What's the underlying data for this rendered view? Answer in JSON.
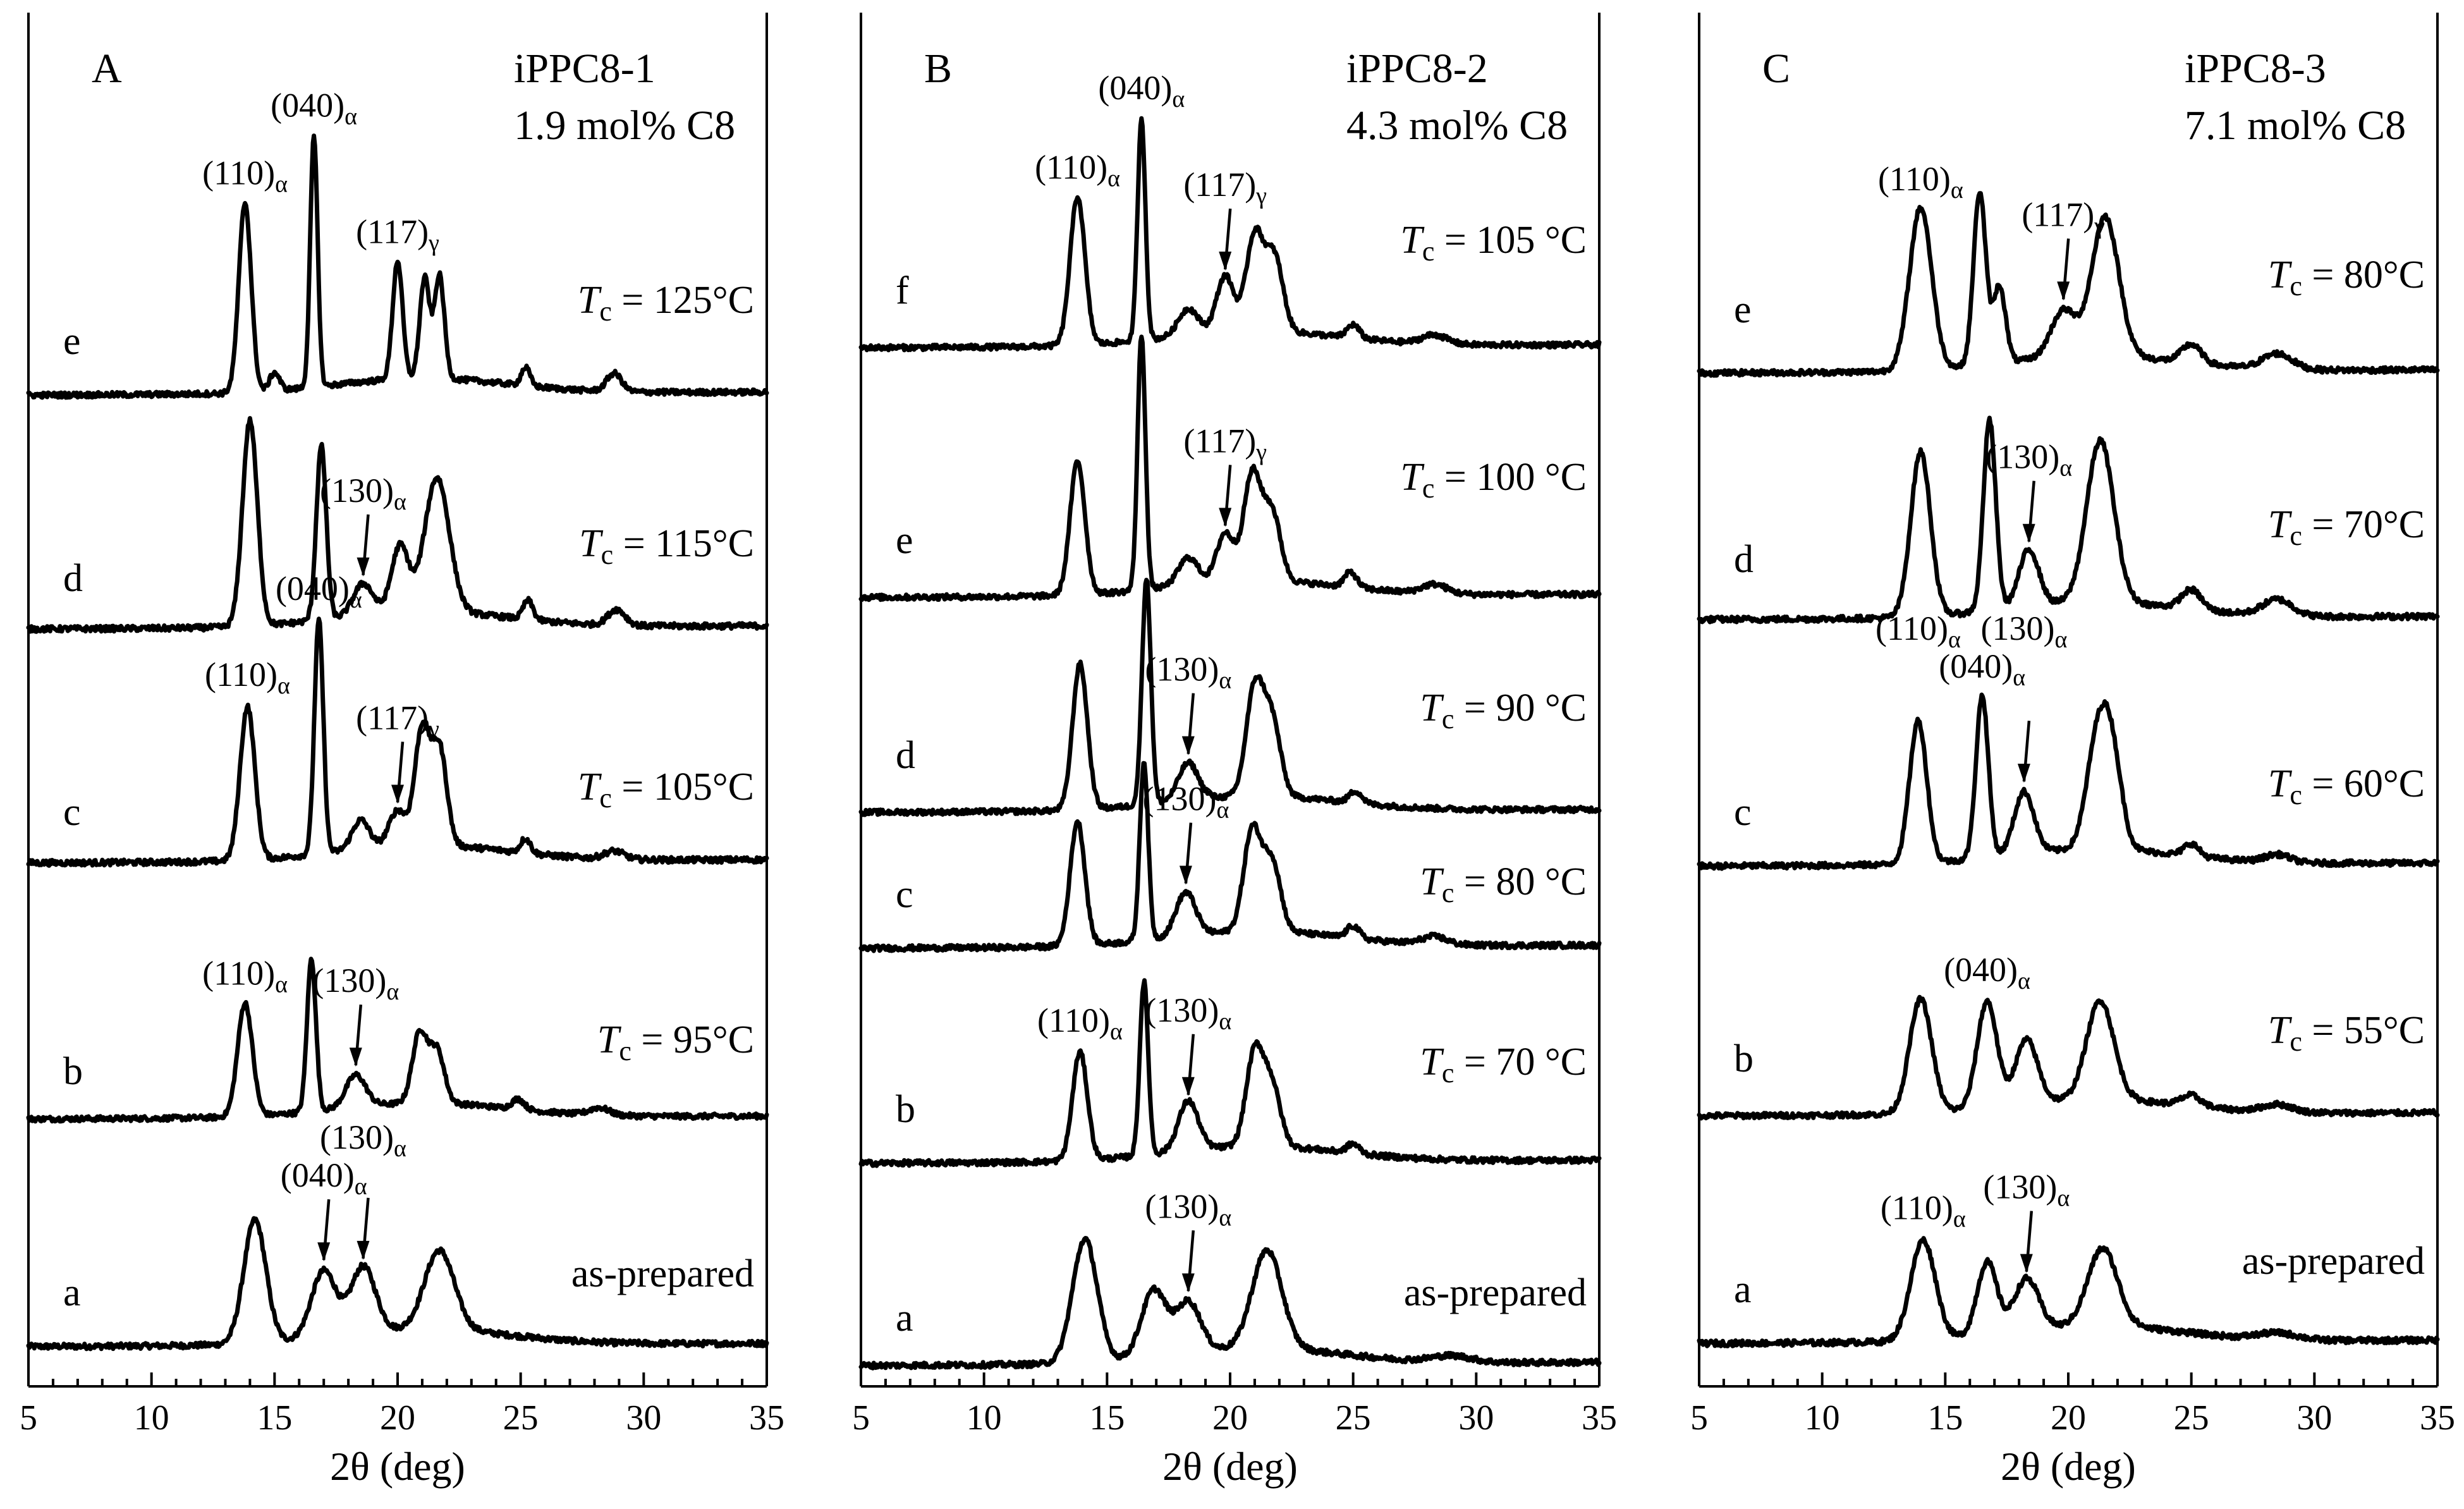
{
  "colors": {
    "line": "#000000",
    "background": "#ffffff"
  },
  "chart_data": [
    {
      "type": "line",
      "panel_letter": "A",
      "sample": "iPPC8-1",
      "composition": "1.9 mol% C8",
      "xlabel": "2θ (deg)",
      "xlim": [
        5,
        35
      ],
      "xticks": [
        "5",
        "10",
        "15",
        "20",
        "25",
        "30",
        "35"
      ],
      "series": [
        {
          "name": "a",
          "condition": "as-prepared",
          "tc_prefix": "",
          "tc_value": "as-prepared",
          "peaks": [
            [
              14.2,
              0.78,
              0.45
            ],
            [
              17.0,
              0.42,
              0.5
            ],
            [
              18.6,
              0.42,
              0.5
            ],
            [
              21.7,
              0.5,
              0.6
            ]
          ]
        },
        {
          "name": "b",
          "condition": "Tc = 95°C",
          "tc_prefix": "T",
          "tc_value": " = 95°C",
          "peaks": [
            [
              13.8,
              0.78,
              0.3
            ],
            [
              16.5,
              1.05,
              0.18
            ],
            [
              18.3,
              0.22,
              0.4
            ],
            [
              20.9,
              0.48,
              0.3
            ],
            [
              21.6,
              0.36,
              0.3
            ],
            [
              24.9,
              0.07,
              0.25
            ],
            [
              28.2,
              0.05,
              0.4
            ]
          ]
        },
        {
          "name": "c",
          "condition": "Tc = 105°C",
          "tc_prefix": "T",
          "tc_value": " = 105°C",
          "peaks": [
            [
              13.9,
              0.95,
              0.3
            ],
            [
              16.8,
              1.45,
              0.18
            ],
            [
              18.5,
              0.18,
              0.35
            ],
            [
              20.0,
              0.22,
              0.35
            ],
            [
              21.0,
              0.72,
              0.3
            ],
            [
              21.7,
              0.6,
              0.3
            ],
            [
              25.2,
              0.09,
              0.2
            ],
            [
              28.8,
              0.05,
              0.4
            ]
          ]
        },
        {
          "name": "d",
          "condition": "Tc = 115°C",
          "tc_prefix": "T",
          "tc_value": " = 115°C",
          "peaks": [
            [
              14.0,
              1.3,
              0.3
            ],
            [
              16.9,
              1.1,
              0.2
            ],
            [
              18.6,
              0.2,
              0.4
            ],
            [
              20.1,
              0.42,
              0.35
            ],
            [
              21.6,
              0.85,
              0.5
            ],
            [
              25.3,
              0.12,
              0.2
            ],
            [
              28.9,
              0.1,
              0.35
            ]
          ]
        },
        {
          "name": "e",
          "condition": "Tc = 125°C",
          "tc_prefix": "T",
          "tc_value": " = 125°C",
          "peaks": [
            [
              13.8,
              1.25,
              0.25
            ],
            [
              15.0,
              0.12,
              0.2
            ],
            [
              16.6,
              1.65,
              0.15
            ],
            [
              20.0,
              0.78,
              0.2
            ],
            [
              21.1,
              0.66,
              0.2
            ],
            [
              21.7,
              0.68,
              0.2
            ],
            [
              25.2,
              0.12,
              0.18
            ],
            [
              28.8,
              0.12,
              0.3
            ]
          ]
        }
      ],
      "annotations": [
        {
          "hkl": "(110)",
          "sub": "α",
          "series": "e",
          "x": 13.8,
          "arrow": false
        },
        {
          "hkl": "(040)",
          "sub": "α",
          "series": "e",
          "x": 16.6,
          "arrow": false
        },
        {
          "hkl": "(117)",
          "sub": "γ",
          "series": "e",
          "x": 20.0,
          "arrow": false
        },
        {
          "hkl": "(130)",
          "sub": "α",
          "series": "d",
          "x": 18.6,
          "arrow": true
        },
        {
          "hkl": "(110)",
          "sub": "α",
          "series": "c",
          "x": 13.9,
          "arrow": false
        },
        {
          "hkl": "(040)",
          "sub": "α",
          "series": "c",
          "x": 16.8,
          "arrow": false
        },
        {
          "hkl": "(117)",
          "sub": "γ",
          "series": "c",
          "x": 20.0,
          "arrow": true
        },
        {
          "hkl": "(110)",
          "sub": "α",
          "series": "b",
          "x": 13.8,
          "arrow": false
        },
        {
          "hkl": "(130)",
          "sub": "α",
          "series": "b",
          "x": 18.3,
          "arrow": true
        },
        {
          "hkl": "(040)",
          "sub": "α",
          "series": "a",
          "x": 17.0,
          "arrow": true
        },
        {
          "hkl": "(130)",
          "sub": "α",
          "series": "a",
          "x": 18.6,
          "arrow": true
        }
      ]
    },
    {
      "type": "line",
      "panel_letter": "B",
      "sample": "iPPC8-2",
      "composition": "4.3 mol% C8",
      "xlabel": "2θ (deg)",
      "xlim": [
        5,
        35
      ],
      "xticks": [
        "5",
        "10",
        "15",
        "20",
        "25",
        "30",
        "35"
      ],
      "series": [
        {
          "name": "a",
          "condition": "as-prepared",
          "tc_prefix": "",
          "tc_value": "as-prepared",
          "peaks": [
            [
              14.1,
              0.78,
              0.5
            ],
            [
              16.9,
              0.42,
              0.5
            ],
            [
              18.3,
              0.32,
              0.5
            ],
            [
              21.5,
              0.62,
              0.6
            ],
            [
              29.0,
              0.04,
              0.8
            ]
          ]
        },
        {
          "name": "b",
          "condition": "Tc = 70 °C",
          "tc_prefix": "T",
          "tc_value": " = 70 °C",
          "peaks": [
            [
              13.9,
              0.7,
              0.3
            ],
            [
              16.5,
              1.12,
              0.17
            ],
            [
              18.3,
              0.32,
              0.4
            ],
            [
              21.0,
              0.6,
              0.35
            ],
            [
              21.7,
              0.38,
              0.35
            ],
            [
              25.0,
              0.06,
              0.25
            ]
          ]
        },
        {
          "name": "c",
          "condition": "Tc = 80 °C",
          "tc_prefix": "T",
          "tc_value": " = 80 °C",
          "peaks": [
            [
              13.8,
              0.8,
              0.3
            ],
            [
              16.5,
              1.15,
              0.17
            ],
            [
              18.2,
              0.28,
              0.4
            ],
            [
              20.9,
              0.65,
              0.35
            ],
            [
              21.7,
              0.45,
              0.35
            ],
            [
              25.0,
              0.08,
              0.25
            ],
            [
              28.3,
              0.05,
              0.5
            ]
          ]
        },
        {
          "name": "d",
          "condition": "Tc = 90 °C",
          "tc_prefix": "T",
          "tc_value": " = 90 °C",
          "peaks": [
            [
              13.9,
              0.98,
              0.3
            ],
            [
              16.6,
              1.52,
              0.18
            ],
            [
              18.3,
              0.25,
              0.4
            ],
            [
              21.0,
              0.72,
              0.35
            ],
            [
              21.7,
              0.5,
              0.35
            ],
            [
              25.1,
              0.08,
              0.25
            ]
          ]
        },
        {
          "name": "e",
          "condition": "Tc = 100 °C",
          "tc_prefix": "T",
          "tc_value": " = 100 °C",
          "peaks": [
            [
              13.8,
              0.88,
              0.3
            ],
            [
              16.4,
              1.68,
              0.16
            ],
            [
              18.3,
              0.18,
              0.4
            ],
            [
              19.8,
              0.32,
              0.35
            ],
            [
              20.9,
              0.7,
              0.35
            ],
            [
              21.7,
              0.45,
              0.35
            ],
            [
              24.9,
              0.1,
              0.25
            ],
            [
              28.3,
              0.06,
              0.5
            ]
          ]
        },
        {
          "name": "f",
          "condition": "Tc = 105 °C",
          "tc_prefix": "T",
          "tc_value": " = 105 °C",
          "peaks": [
            [
              13.8,
              1.0,
              0.3
            ],
            [
              16.4,
              1.48,
              0.16
            ],
            [
              18.3,
              0.18,
              0.4
            ],
            [
              19.8,
              0.38,
              0.35
            ],
            [
              21.0,
              0.65,
              0.35
            ],
            [
              21.8,
              0.5,
              0.35
            ],
            [
              25.0,
              0.09,
              0.25
            ],
            [
              28.3,
              0.06,
              0.5
            ]
          ]
        }
      ],
      "annotations": [
        {
          "hkl": "(110)",
          "sub": "α",
          "series": "f",
          "x": 13.8,
          "arrow": false
        },
        {
          "hkl": "(040)",
          "sub": "α",
          "series": "f",
          "x": 16.4,
          "arrow": false
        },
        {
          "hkl": "(117)",
          "sub": "γ",
          "series": "f",
          "x": 19.8,
          "arrow": true
        },
        {
          "hkl": "(117)",
          "sub": "γ",
          "series": "e",
          "x": 19.8,
          "arrow": true
        },
        {
          "hkl": "(130)",
          "sub": "α",
          "series": "d",
          "x": 18.3,
          "arrow": true
        },
        {
          "hkl": "(130)",
          "sub": "α",
          "series": "c",
          "x": 18.2,
          "arrow": true
        },
        {
          "hkl": "(110)",
          "sub": "α",
          "series": "b",
          "x": 13.9,
          "arrow": false
        },
        {
          "hkl": "(130)",
          "sub": "α",
          "series": "b",
          "x": 18.3,
          "arrow": true
        },
        {
          "hkl": "(130)",
          "sub": "α",
          "series": "a",
          "x": 18.3,
          "arrow": true
        }
      ]
    },
    {
      "type": "line",
      "panel_letter": "C",
      "sample": "iPPC8-3",
      "composition": "7.1 mol% C8",
      "xlabel": "2θ (deg)",
      "xlim": [
        5,
        35
      ],
      "xticks": [
        "5",
        "10",
        "15",
        "20",
        "25",
        "30",
        "35"
      ],
      "series": [
        {
          "name": "a",
          "condition": "as-prepared",
          "tc_prefix": "",
          "tc_value": "as-prepared",
          "peaks": [
            [
              14.1,
              0.62,
              0.5
            ],
            [
              16.7,
              0.45,
              0.4
            ],
            [
              18.3,
              0.32,
              0.5
            ],
            [
              21.4,
              0.48,
              0.6
            ],
            [
              28.5,
              0.04,
              0.8
            ]
          ]
        },
        {
          "name": "b",
          "condition": "Tc = 55°C",
          "tc_prefix": "T",
          "tc_value": " = 55°C",
          "peaks": [
            [
              14.0,
              0.75,
              0.45
            ],
            [
              16.7,
              0.7,
              0.4
            ],
            [
              18.3,
              0.42,
              0.45
            ],
            [
              21.3,
              0.65,
              0.55
            ],
            [
              25.0,
              0.07,
              0.4
            ],
            [
              28.5,
              0.05,
              0.6
            ]
          ]
        },
        {
          "name": "c",
          "condition": "Tc = 60°C",
          "tc_prefix": "T",
          "tc_value": " = 60°C",
          "peaks": [
            [
              13.9,
              0.92,
              0.35
            ],
            [
              16.5,
              1.05,
              0.25
            ],
            [
              18.2,
              0.4,
              0.4
            ],
            [
              21.2,
              0.7,
              0.45
            ],
            [
              21.8,
              0.5,
              0.4
            ],
            [
              25.0,
              0.08,
              0.3
            ],
            [
              28.5,
              0.05,
              0.5
            ]
          ]
        },
        {
          "name": "d",
          "condition": "Tc = 70°C",
          "tc_prefix": "T",
          "tc_value": " = 70°C",
          "peaks": [
            [
              14.0,
              1.02,
              0.4
            ],
            [
              16.8,
              1.18,
              0.25
            ],
            [
              18.4,
              0.35,
              0.4
            ],
            [
              21.3,
              1.0,
              0.55
            ],
            [
              25.0,
              0.12,
              0.4
            ],
            [
              28.5,
              0.1,
              0.6
            ]
          ]
        },
        {
          "name": "e",
          "condition": "Tc = 80°C",
          "tc_prefix": "T",
          "tc_value": " = 80°C",
          "peaks": [
            [
              14.0,
              1.05,
              0.45
            ],
            [
              16.4,
              1.12,
              0.25
            ],
            [
              17.2,
              0.5,
              0.25
            ],
            [
              19.8,
              0.3,
              0.5
            ],
            [
              21.5,
              0.9,
              0.55
            ],
            [
              25.0,
              0.12,
              0.4
            ],
            [
              28.5,
              0.1,
              0.6
            ]
          ]
        }
      ],
      "annotations": [
        {
          "hkl": "(110)",
          "sub": "α",
          "series": "e",
          "x": 14.0,
          "arrow": false
        },
        {
          "hkl": "(117)",
          "sub": "γ",
          "series": "e",
          "x": 19.8,
          "arrow": true
        },
        {
          "hkl": "(130)",
          "sub": "α",
          "series": "d",
          "x": 18.4,
          "arrow": true
        },
        {
          "hkl": "(040)",
          "sub": "α",
          "series": "c",
          "x": 16.5,
          "arrow": false
        },
        {
          "hkl": "(110)",
          "sub": "α",
          "series": "c",
          "x": 13.9,
          "arrow": false
        },
        {
          "hkl": "(130)",
          "sub": "α",
          "series": "c",
          "x": 18.2,
          "arrow": true
        },
        {
          "hkl": "(040)",
          "sub": "α",
          "series": "b",
          "x": 16.7,
          "arrow": false
        },
        {
          "hkl": "(110)",
          "sub": "α",
          "series": "a",
          "x": 14.1,
          "arrow": false
        },
        {
          "hkl": "(130)",
          "sub": "α",
          "series": "a",
          "x": 18.3,
          "arrow": true
        }
      ]
    }
  ]
}
